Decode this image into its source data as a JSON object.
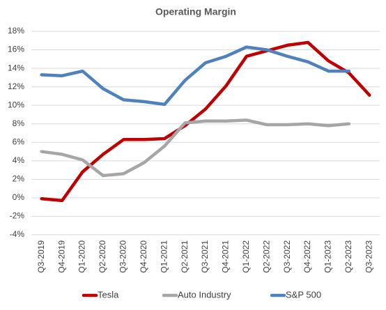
{
  "chart_data": {
    "type": "line",
    "title": "Operating Margin",
    "categories": [
      "Q3-2019",
      "Q4-2019",
      "Q1-2020",
      "Q2-2020",
      "Q3-2020",
      "Q4-2020",
      "Q1-2021",
      "Q2-2021",
      "Q3-2021",
      "Q4-2021",
      "Q1-2022",
      "Q2-2022",
      "Q3-2022",
      "Q4-2022",
      "Q1-2023",
      "Q2-2023",
      "Q3-2023"
    ],
    "series": [
      {
        "name": "Tesla",
        "color": "#c00000",
        "values": [
          -0.1,
          -0.3,
          2.8,
          4.7,
          6.3,
          6.3,
          6.4,
          7.8,
          9.6,
          12.1,
          15.3,
          15.9,
          16.5,
          16.8,
          14.8,
          13.5,
          11.1
        ]
      },
      {
        "name": "Auto Industry",
        "color": "#a6a6a6",
        "values": [
          5.0,
          4.7,
          4.1,
          2.4,
          2.6,
          3.8,
          5.6,
          8.1,
          8.3,
          8.3,
          8.4,
          7.9,
          7.9,
          8.0,
          7.8,
          8.0,
          null
        ]
      },
      {
        "name": "S&P 500",
        "color": "#4f81bd",
        "values": [
          13.3,
          13.2,
          13.7,
          11.8,
          10.6,
          10.4,
          10.1,
          12.7,
          14.6,
          15.3,
          16.3,
          16.0,
          15.3,
          14.7,
          13.7,
          13.7,
          null
        ]
      }
    ],
    "ylim": [
      -4,
      18
    ],
    "yticks": [
      {
        "value": -4,
        "label": "-4%"
      },
      {
        "value": -2,
        "label": "-2%"
      },
      {
        "value": 0,
        "label": "0%"
      },
      {
        "value": 2,
        "label": "2%"
      },
      {
        "value": 4,
        "label": "4%"
      },
      {
        "value": 6,
        "label": "6%"
      },
      {
        "value": 8,
        "label": "8%"
      },
      {
        "value": 10,
        "label": "10%"
      },
      {
        "value": 12,
        "label": "12%"
      },
      {
        "value": 14,
        "label": "14%"
      },
      {
        "value": 16,
        "label": "16%"
      },
      {
        "value": 18,
        "label": "18%"
      }
    ],
    "grid": true,
    "legend": "bottom"
  }
}
